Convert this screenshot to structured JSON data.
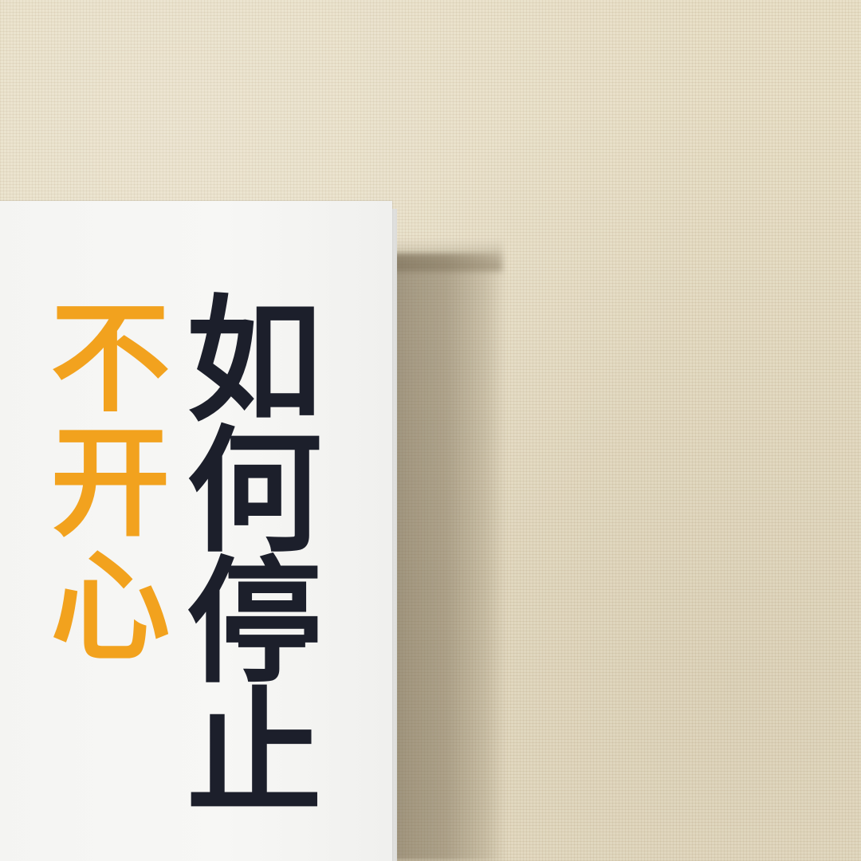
{
  "book": {
    "title_main": "如何停止",
    "title_accent": "不开心",
    "colors": {
      "cover": "#f5f5f3",
      "title_main": "#1c1f2b",
      "title_accent": "#f2a21e",
      "background": "#e6dcc2"
    }
  }
}
